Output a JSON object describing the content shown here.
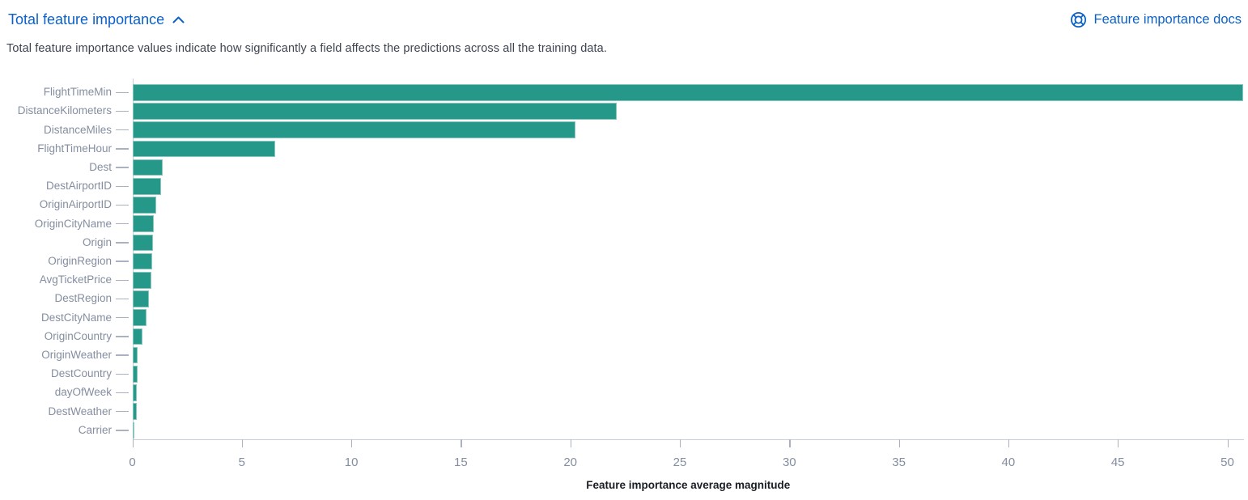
{
  "header": {
    "title": "Total feature importance",
    "collapse_icon": "chevron-up-icon",
    "docs_label": "Feature importance docs",
    "docs_icon": "help-lifebuoy-icon"
  },
  "description": {
    "text": "Total feature importance values indicate how significantly a field affects the predictions across all the training data."
  },
  "colors": {
    "link_blue": "#0b61c8",
    "bar_teal": "#26988a",
    "tick_label_gray": "#848ea0",
    "axis_line_gray": "#c9cdd8"
  },
  "chart_data": {
    "type": "bar",
    "orientation": "horizontal",
    "title": "",
    "xlabel": "Feature importance average magnitude",
    "ylabel": "",
    "categories": [
      "FlightTimeMin",
      "DistanceKilometers",
      "DistanceMiles",
      "FlightTimeHour",
      "Dest",
      "DestAirportID",
      "OriginAirportID",
      "OriginCityName",
      "Origin",
      "OriginRegion",
      "AvgTicketPrice",
      "DestRegion",
      "DestCityName",
      "OriginCountry",
      "OriginWeather",
      "DestCountry",
      "dayOfWeek",
      "DestWeather",
      "Carrier"
    ],
    "values": [
      50.7,
      22.1,
      20.2,
      6.5,
      1.35,
      1.3,
      1.05,
      0.97,
      0.93,
      0.88,
      0.83,
      0.73,
      0.63,
      0.44,
      0.22,
      0.2,
      0.18,
      0.16,
      0.06
    ],
    "x_ticks": [
      0,
      5,
      10,
      15,
      20,
      25,
      30,
      35,
      40,
      45,
      50
    ],
    "xlim": [
      0,
      50.7
    ],
    "grid": false,
    "legend": "none",
    "bar_color": "#26988a"
  }
}
